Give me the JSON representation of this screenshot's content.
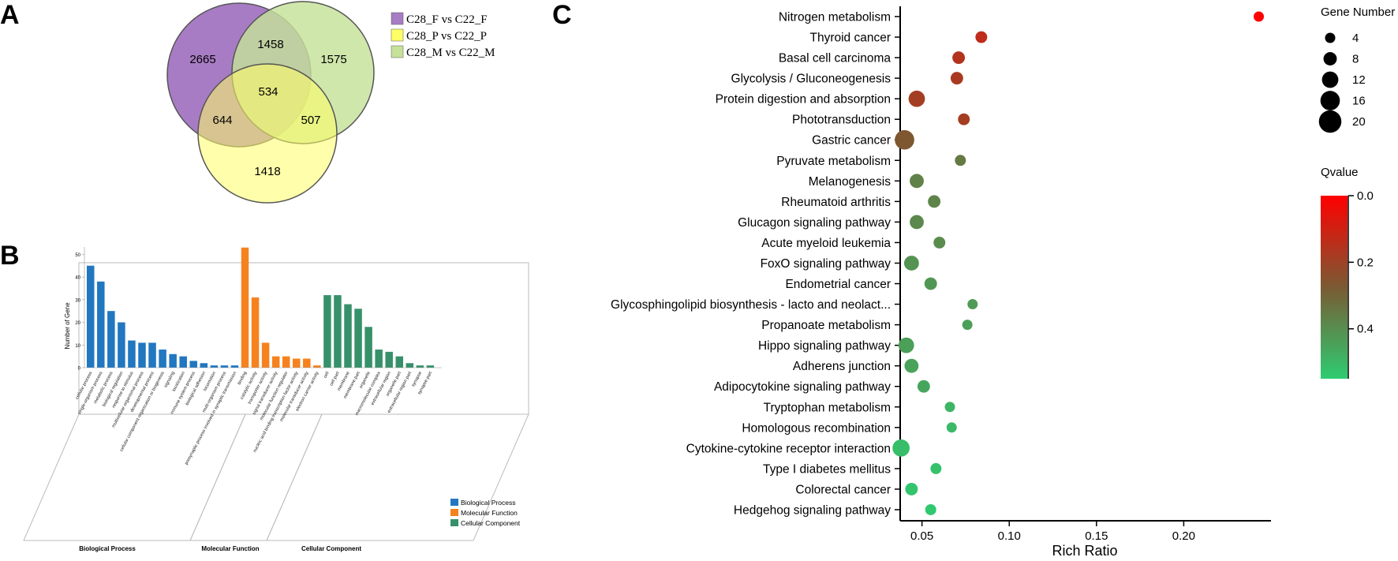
{
  "panels": {
    "a": "A",
    "b": "B",
    "c": "C"
  },
  "chart_data": [
    {
      "type": "venn",
      "sets": [
        {
          "name": "C28_F vs C22_F",
          "color": "#a87cc4"
        },
        {
          "name": "C28_P vs C22_P",
          "color": "#ffff66"
        },
        {
          "name": "C28_M vs C22_M",
          "color": "#c6e29a"
        }
      ],
      "regions": {
        "F_only": "2665",
        "F_M": "1458",
        "M_only": "1575",
        "F_M_P": "534",
        "F_P": "644",
        "M_P": "507",
        "P_only": "1418"
      }
    },
    {
      "type": "bar",
      "title": "",
      "ylabel": "Number of Gene",
      "ylim": [
        0,
        55
      ],
      "yticks": [
        "0",
        "10",
        "20",
        "30",
        "40",
        "50"
      ],
      "categories": [
        {
          "label": "cellular process",
          "value": 45,
          "group": 0
        },
        {
          "label": "single-organism process",
          "value": 38,
          "group": 0
        },
        {
          "label": "metabolic process",
          "value": 25,
          "group": 0
        },
        {
          "label": "biological regulation",
          "value": 20,
          "group": 0
        },
        {
          "label": "response to stimulus",
          "value": 12,
          "group": 0
        },
        {
          "label": "multicellular organismal process",
          "value": 11,
          "group": 0
        },
        {
          "label": "developmental process",
          "value": 11,
          "group": 0
        },
        {
          "label": "cellular component organization or biogenesis",
          "value": 8,
          "group": 0
        },
        {
          "label": "signaling",
          "value": 6,
          "group": 0
        },
        {
          "label": "localization",
          "value": 5,
          "group": 0
        },
        {
          "label": "immune system process",
          "value": 3,
          "group": 0
        },
        {
          "label": "biological adhesion",
          "value": 2,
          "group": 0
        },
        {
          "label": "locomotion",
          "value": 1,
          "group": 0
        },
        {
          "label": "multi-organism process",
          "value": 1,
          "group": 0
        },
        {
          "label": "presynaptic process involved in synaptic transmission",
          "value": 1,
          "group": 0
        },
        {
          "label": "binding",
          "value": 53,
          "group": 1
        },
        {
          "label": "catalytic activity",
          "value": 31,
          "group": 1
        },
        {
          "label": "transporter activity",
          "value": 11,
          "group": 1
        },
        {
          "label": "signal transducer activity",
          "value": 5,
          "group": 1
        },
        {
          "label": "molecular function regulator",
          "value": 5,
          "group": 1
        },
        {
          "label": "nucleic acid binding transcription factor activity",
          "value": 4,
          "group": 1
        },
        {
          "label": "molecular transducer activity",
          "value": 4,
          "group": 1
        },
        {
          "label": "electron carrier activity",
          "value": 1,
          "group": 1
        },
        {
          "label": "cell",
          "value": 32,
          "group": 2
        },
        {
          "label": "cell part",
          "value": 32,
          "group": 2
        },
        {
          "label": "membrane",
          "value": 28,
          "group": 2
        },
        {
          "label": "membrane part",
          "value": 26,
          "group": 2
        },
        {
          "label": "organelle",
          "value": 18,
          "group": 2
        },
        {
          "label": "macromolecular complex",
          "value": 8,
          "group": 2
        },
        {
          "label": "extracellular region",
          "value": 7,
          "group": 2
        },
        {
          "label": "organelle part",
          "value": 5,
          "group": 2
        },
        {
          "label": "extracellular region part",
          "value": 2,
          "group": 2
        },
        {
          "label": "synapse",
          "value": 1,
          "group": 2
        },
        {
          "label": "synapse part",
          "value": 1,
          "group": 2
        }
      ],
      "groups": [
        {
          "name": "Biological Process",
          "color": "#2177c0"
        },
        {
          "name": "Molecular Function",
          "color": "#f5821f"
        },
        {
          "name": "Cellular Component",
          "color": "#36916a"
        }
      ],
      "legend": [
        "Biological Process",
        "Molecular Function",
        "Cellular Component"
      ]
    },
    {
      "type": "scatter",
      "xlabel": "Rich Ratio",
      "xlim": [
        0.0375,
        0.25
      ],
      "xticks": [
        "0.05",
        "0.10",
        "0.15",
        "0.20"
      ],
      "xtick_values": [
        0.05,
        0.1,
        0.15,
        0.2
      ],
      "points": [
        {
          "pathway": "Nitrogen metabolism",
          "rich_ratio": 0.243,
          "gene_number": 4,
          "qvalue": 0.0
        },
        {
          "pathway": "Thyroid cancer",
          "rich_ratio": 0.084,
          "gene_number": 6,
          "qvalue": 0.12
        },
        {
          "pathway": "Basal cell carcinoma",
          "rich_ratio": 0.071,
          "gene_number": 7,
          "qvalue": 0.14
        },
        {
          "pathway": "Glycolysis / Gluconeogenesis",
          "rich_ratio": 0.07,
          "gene_number": 7,
          "qvalue": 0.16
        },
        {
          "pathway": "Protein digestion and absorption",
          "rich_ratio": 0.047,
          "gene_number": 12,
          "qvalue": 0.17
        },
        {
          "pathway": "Phototransduction",
          "rich_ratio": 0.074,
          "gene_number": 6,
          "qvalue": 0.17
        },
        {
          "pathway": "Gastric cancer",
          "rich_ratio": 0.04,
          "gene_number": 16,
          "qvalue": 0.24
        },
        {
          "pathway": "Pyruvate metabolism",
          "rich_ratio": 0.072,
          "gene_number": 5,
          "qvalue": 0.33
        },
        {
          "pathway": "Melanogenesis",
          "rich_ratio": 0.047,
          "gene_number": 9,
          "qvalue": 0.35
        },
        {
          "pathway": "Rheumatoid arthritis",
          "rich_ratio": 0.057,
          "gene_number": 7,
          "qvalue": 0.36
        },
        {
          "pathway": "Glucagon signaling pathway",
          "rich_ratio": 0.047,
          "gene_number": 9,
          "qvalue": 0.37
        },
        {
          "pathway": "Acute myeloid leukemia",
          "rich_ratio": 0.06,
          "gene_number": 6,
          "qvalue": 0.38
        },
        {
          "pathway": "FoxO signaling pathway",
          "rich_ratio": 0.044,
          "gene_number": 10,
          "qvalue": 0.4
        },
        {
          "pathway": "Endometrial cancer",
          "rich_ratio": 0.055,
          "gene_number": 7,
          "qvalue": 0.41
        },
        {
          "pathway": "Glycosphingolipid biosynthesis - lacto and neolact...",
          "rich_ratio": 0.079,
          "gene_number": 4,
          "qvalue": 0.42
        },
        {
          "pathway": "Propanoate metabolism",
          "rich_ratio": 0.076,
          "gene_number": 4,
          "qvalue": 0.43
        },
        {
          "pathway": "Hippo signaling pathway",
          "rich_ratio": 0.041,
          "gene_number": 11,
          "qvalue": 0.43
        },
        {
          "pathway": "Adherens junction",
          "rich_ratio": 0.044,
          "gene_number": 9,
          "qvalue": 0.44
        },
        {
          "pathway": "Adipocytokine signaling pathway",
          "rich_ratio": 0.051,
          "gene_number": 7,
          "qvalue": 0.45
        },
        {
          "pathway": "Tryptophan metabolism",
          "rich_ratio": 0.066,
          "gene_number": 4,
          "qvalue": 0.49
        },
        {
          "pathway": "Homologous recombination",
          "rich_ratio": 0.067,
          "gene_number": 4,
          "qvalue": 0.5
        },
        {
          "pathway": "Cytokine-cytokine receptor interaction",
          "rich_ratio": 0.038,
          "gene_number": 13,
          "qvalue": 0.51
        },
        {
          "pathway": "Type I diabetes mellitus",
          "rich_ratio": 0.058,
          "gene_number": 5,
          "qvalue": 0.52
        },
        {
          "pathway": "Colorectal cancer",
          "rich_ratio": 0.044,
          "gene_number": 7,
          "qvalue": 0.53
        },
        {
          "pathway": "Hedgehog signaling pathway",
          "rich_ratio": 0.055,
          "gene_number": 5,
          "qvalue": 0.54
        }
      ],
      "size_legend": {
        "title": "Gene Number",
        "values": [
          4,
          8,
          12,
          16,
          20
        ],
        "labels": [
          "4",
          "8",
          "12",
          "16",
          "20"
        ]
      },
      "color_legend": {
        "title": "Qvalue",
        "ticks": [
          "0.0",
          "0.2",
          "0.4"
        ],
        "tick_values": [
          0.0,
          0.2,
          0.4
        ],
        "range": [
          0.0,
          0.55
        ],
        "low_color": "#ff0000",
        "mid_color": "#7a5a33",
        "high_color": "#2ecc71"
      }
    }
  ]
}
